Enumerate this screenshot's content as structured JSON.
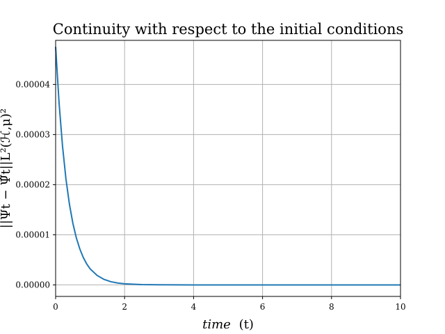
{
  "chart_data": {
    "type": "line",
    "title": "Continuity with respect to the initial conditions",
    "xlabel_italic": "time",
    "xlabel_rest": "(t)",
    "ylabel": "||Ψt − Ψ̃t||L²(ℋ,μ)²",
    "xlim": [
      0,
      10
    ],
    "ylim": [
      -2.3e-06,
      4.88e-05
    ],
    "xticks": [
      0,
      2,
      4,
      6,
      8,
      10
    ],
    "xtick_labels": [
      "0",
      "2",
      "4",
      "6",
      "8",
      "10"
    ],
    "yticks": [
      0,
      1e-05,
      2e-05,
      3e-05,
      4e-05
    ],
    "ytick_labels": [
      "0.00000",
      "0.00001",
      "0.00002",
      "0.00003",
      "0.00004"
    ],
    "grid": true,
    "series": [
      {
        "color": "#1f77b4",
        "x": [
          0,
          0.1,
          0.2,
          0.3,
          0.4,
          0.5,
          0.6,
          0.7,
          0.8,
          0.9,
          1.0,
          1.2,
          1.4,
          1.6,
          1.8,
          2.0,
          2.5,
          3.0,
          4.0,
          5.0,
          6.0,
          8.0,
          10.0
        ],
        "y": [
          4.75e-05,
          3.63e-05,
          2.77e-05,
          2.11e-05,
          1.61e-05,
          1.23e-05,
          9.4e-06,
          7.2e-06,
          5.5e-06,
          4.2e-06,
          3.2e-06,
          1.9e-06,
          1.1e-06,
          6.4e-07,
          3.7e-07,
          2.2e-07,
          6e-08,
          2e-08,
          0.0,
          0.0,
          0.0,
          0.0,
          0.0
        ]
      }
    ]
  }
}
